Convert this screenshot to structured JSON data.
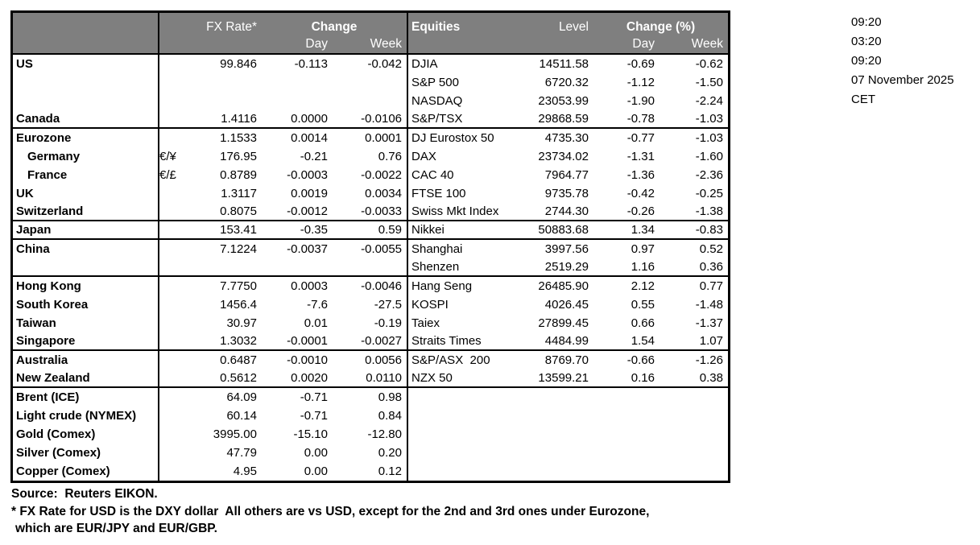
{
  "header": {
    "fx_rate": "FX Rate*",
    "change": "Change",
    "day": "Day",
    "week": "Week",
    "equities": "Equities",
    "level": "Level",
    "change_pct": "Change (%)"
  },
  "fx": {
    "rows": [
      {
        "label": "US",
        "code": "",
        "rate": "99.846",
        "day": "-0.113",
        "week": "-0.042",
        "indent": false
      },
      {
        "label": "",
        "code": "",
        "rate": "",
        "day": "",
        "week": "",
        "indent": false
      },
      {
        "label": "",
        "code": "",
        "rate": "",
        "day": "",
        "week": "",
        "indent": false
      },
      {
        "label": "Canada",
        "code": "",
        "rate": "1.4116",
        "day": "0.0000",
        "week": "-0.0106",
        "indent": false
      },
      {
        "label": "Eurozone",
        "code": "",
        "rate": "1.1533",
        "day": "0.0014",
        "week": "0.0001",
        "indent": false
      },
      {
        "label": "Germany",
        "code": "€/¥",
        "rate": "176.95",
        "day": "-0.21",
        "week": "0.76",
        "indent": true
      },
      {
        "label": "France",
        "code": "€/£",
        "rate": "0.8789",
        "day": "-0.0003",
        "week": "-0.0022",
        "indent": true
      },
      {
        "label": "UK",
        "code": "",
        "rate": "1.3117",
        "day": "0.0019",
        "week": "0.0034",
        "indent": false
      },
      {
        "label": "Switzerland",
        "code": "",
        "rate": "0.8075",
        "day": "-0.0012",
        "week": "-0.0033",
        "indent": false
      },
      {
        "label": "Japan",
        "code": "",
        "rate": "153.41",
        "day": "-0.35",
        "week": "0.59",
        "indent": false
      },
      {
        "label": "China",
        "code": "",
        "rate": "7.1224",
        "day": "-0.0037",
        "week": "-0.0055",
        "indent": false
      },
      {
        "label": "",
        "code": "",
        "rate": "",
        "day": "",
        "week": "",
        "indent": false
      },
      {
        "label": "Hong Kong",
        "code": "",
        "rate": "7.7750",
        "day": "0.0003",
        "week": "-0.0046",
        "indent": false
      },
      {
        "label": "South Korea",
        "code": "",
        "rate": "1456.4",
        "day": "-7.6",
        "week": "-27.5",
        "indent": false
      },
      {
        "label": "Taiwan",
        "code": "",
        "rate": "30.97",
        "day": "0.01",
        "week": "-0.19",
        "indent": false
      },
      {
        "label": "Singapore",
        "code": "",
        "rate": "1.3032",
        "day": "-0.0001",
        "week": "-0.0027",
        "indent": false
      },
      {
        "label": "Australia",
        "code": "",
        "rate": "0.6487",
        "day": "-0.0010",
        "week": "0.0056",
        "indent": false
      },
      {
        "label": "New Zealand",
        "code": "",
        "rate": "0.5612",
        "day": "0.0020",
        "week": "0.0110",
        "indent": false
      },
      {
        "label": "Brent (ICE)",
        "code": "",
        "rate": "64.09",
        "day": "-0.71",
        "week": "0.98",
        "indent": false
      },
      {
        "label": "Light crude (NYMEX)",
        "code": "",
        "rate": "60.14",
        "day": "-0.71",
        "week": "0.84",
        "indent": false
      },
      {
        "label": "Gold (Comex)",
        "code": "",
        "rate": "3995.00",
        "day": "-15.10",
        "week": "-12.80",
        "indent": false
      },
      {
        "label": "Silver (Comex)",
        "code": "",
        "rate": "47.79",
        "day": "0.00",
        "week": "0.20",
        "indent": false
      },
      {
        "label": "Copper (Comex)",
        "code": "",
        "rate": "4.95",
        "day": "0.00",
        "week": "0.12",
        "indent": false
      }
    ]
  },
  "equities": {
    "rows": [
      {
        "name": "DJIA",
        "level": "14511.58",
        "day": "-0.69",
        "week": "-0.62"
      },
      {
        "name": "S&P 500",
        "level": "6720.32",
        "day": "-1.12",
        "week": "-1.50"
      },
      {
        "name": "NASDAQ",
        "level": "23053.99",
        "day": "-1.90",
        "week": "-2.24"
      },
      {
        "name": "S&P/TSX",
        "level": "29868.59",
        "day": "-0.78",
        "week": "-1.03"
      },
      {
        "name": "DJ Eurostox 50",
        "level": "4735.30",
        "day": "-0.77",
        "week": "-1.03"
      },
      {
        "name": "DAX",
        "level": "23734.02",
        "day": "-1.31",
        "week": "-1.60"
      },
      {
        "name": "CAC 40",
        "level": "7964.77",
        "day": "-1.36",
        "week": "-2.36"
      },
      {
        "name": "FTSE 100",
        "level": "9735.78",
        "day": "-0.42",
        "week": "-0.25"
      },
      {
        "name": "Swiss Mkt Index",
        "level": "2744.30",
        "day": "-0.26",
        "week": "-1.38"
      },
      {
        "name": "Nikkei",
        "level": "50883.68",
        "day": "1.34",
        "week": "-0.83"
      },
      {
        "name": "Shanghai",
        "level": "3997.56",
        "day": "0.97",
        "week": "0.52"
      },
      {
        "name": "Shenzen",
        "level": "2519.29",
        "day": "1.16",
        "week": "0.36"
      },
      {
        "name": "Hang Seng",
        "level": "26485.90",
        "day": "2.12",
        "week": "0.77"
      },
      {
        "name": "KOSPI",
        "level": "4026.45",
        "day": "0.55",
        "week": "-1.48"
      },
      {
        "name": "Taiex",
        "level": "27899.45",
        "day": "0.66",
        "week": "-1.37"
      },
      {
        "name": "Straits Times",
        "level": "4484.99",
        "day": "1.54",
        "week": "1.07"
      },
      {
        "name": "S&P/ASX  200",
        "level": "8769.70",
        "day": "-0.66",
        "week": "-1.26"
      },
      {
        "name": "NZX 50",
        "level": "13599.21",
        "day": "0.16",
        "week": "0.38"
      },
      {
        "name": "",
        "level": "",
        "day": "",
        "week": ""
      },
      {
        "name": "",
        "level": "",
        "day": "",
        "week": ""
      },
      {
        "name": "",
        "level": "",
        "day": "",
        "week": ""
      },
      {
        "name": "",
        "level": "",
        "day": "",
        "week": ""
      },
      {
        "name": "",
        "level": "",
        "day": "",
        "week": ""
      }
    ]
  },
  "separator_after_rows": [
    3,
    8,
    9,
    11,
    15,
    17
  ],
  "timestamps": [
    "09:20",
    "03:20",
    "09:20",
    "07 November 2025",
    "CET"
  ],
  "footer": {
    "source": "Source:  Reuters EIKON.",
    "note1": "* FX Rate for USD is the DXY dollar  All others are vs USD, except for the 2nd and 3rd ones under Eurozone,",
    "note2": "which are EUR/JPY and EUR/GBP."
  },
  "colors": {
    "header_bg": "#7f7f7f",
    "header_text": "#ffffff",
    "border": "#000000"
  }
}
